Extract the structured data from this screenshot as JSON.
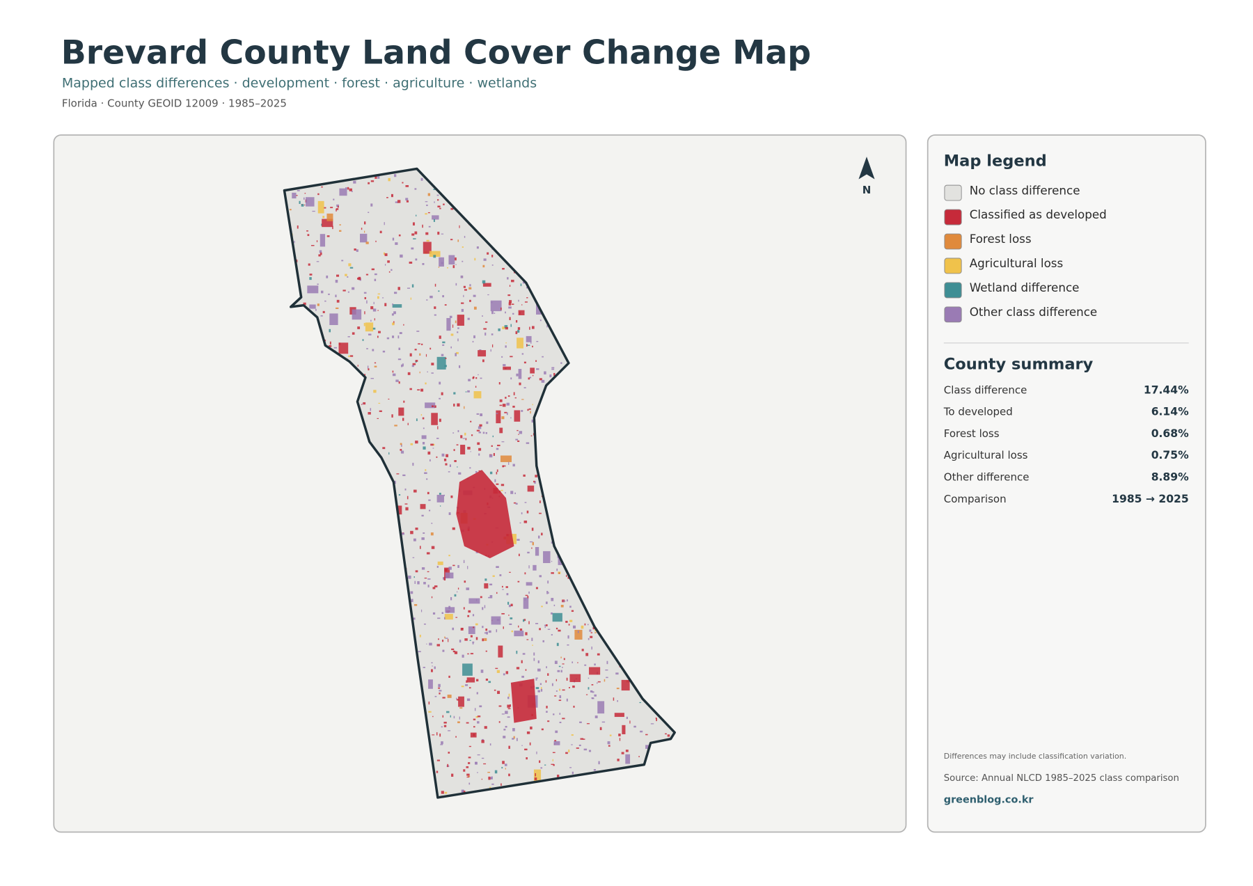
{
  "header": {
    "title": "Brevard County Land Cover Change Map",
    "subtitle": "Mapped class differences · development · forest · agriculture · wetlands",
    "meta": "Florida · County GEOID 12009 · 1985–2025"
  },
  "map": {
    "north_label": "N"
  },
  "legend": {
    "title": "Map legend",
    "items": [
      {
        "label": "No class difference",
        "color": "#e2e2df"
      },
      {
        "label": "Classified as developed",
        "color": "#c62a3a"
      },
      {
        "label": "Forest loss",
        "color": "#e08a3c"
      },
      {
        "label": "Agricultural loss",
        "color": "#f0c24b"
      },
      {
        "label": "Wetland difference",
        "color": "#3e8e94"
      },
      {
        "label": "Other class difference",
        "color": "#9a7bb4"
      }
    ]
  },
  "summary": {
    "title": "County summary",
    "rows": [
      [
        "Class difference",
        "17.44%"
      ],
      [
        "To developed",
        "6.14%"
      ],
      [
        "Forest loss",
        "0.68%"
      ],
      [
        "Agricultural loss",
        "0.75%"
      ],
      [
        "Other difference",
        "8.89%"
      ],
      [
        "Comparison",
        "1985 → 2025"
      ]
    ]
  },
  "notes": {
    "caveat": "Differences may include classification variation.",
    "source": "Source: Annual NLCD 1985–2025 class comparison",
    "credit": "greenblog.co.kr"
  }
}
